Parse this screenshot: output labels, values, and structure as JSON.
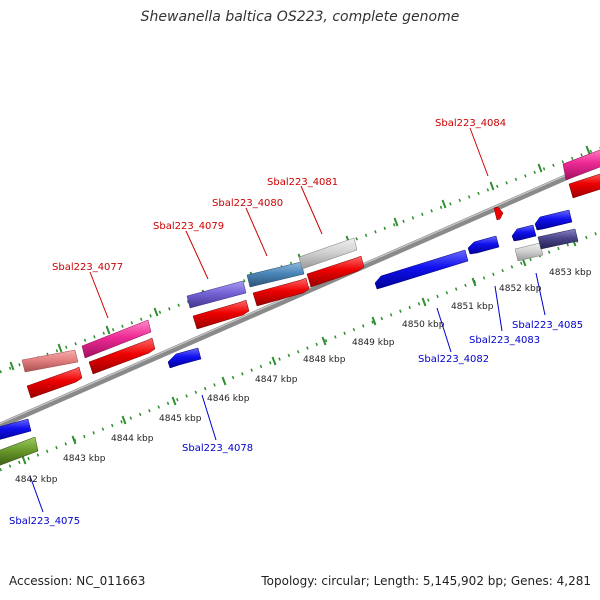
{
  "header": {
    "title": "Shewanella baltica OS223, complete genome"
  },
  "footer": {
    "accession": "Accession: NC_011663",
    "summary": "Topology: circular; Length: 5,145,902 bp; Genes: 4,281"
  },
  "colors": {
    "backbone": "#8a8a8a",
    "ticks": "#2f8f2f",
    "forward_label": "#cc0000",
    "reverse_label": "#0000cc",
    "scale_text": "#222222"
  },
  "scale_labels": [
    "4842 kbp",
    "4843 kbp",
    "4844 kbp",
    "4845 kbp",
    "4846 kbp",
    "4847 kbp",
    "4848 kbp",
    "4849 kbp",
    "4850 kbp",
    "4851 kbp",
    "4852 kbp",
    "4853 kbp"
  ],
  "forward_labels": [
    "Sbal223_4077",
    "Sbal223_4079",
    "Sbal223_4080",
    "Sbal223_4081",
    "Sbal223_4084"
  ],
  "reverse_labels": [
    "Sbal223_4075",
    "Sbal223_4078",
    "Sbal223_4082",
    "Sbal223_4083",
    "Sbal223_4085"
  ]
}
